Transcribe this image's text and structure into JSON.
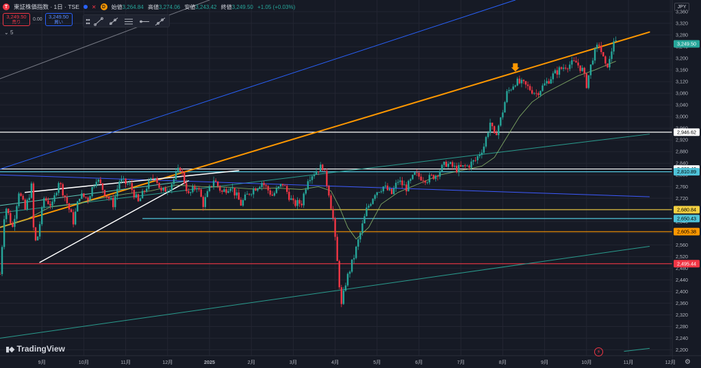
{
  "header": {
    "symbol_badge": "T",
    "title": "東証株価指数 · 1日 · TSE",
    "d_badge": "D",
    "open_label": "始値",
    "open": "3,264.84",
    "high_label": "高値",
    "high": "3,274.06",
    "low_label": "安値",
    "low": "3,243.42",
    "close_label": "終値",
    "close": "3,249.50",
    "change": "+1.05 (+0.03%)"
  },
  "trade": {
    "sell_price": "3,249.50",
    "sell_label": "売り",
    "spread": "0.00",
    "buy_price": "3,249.50",
    "buy_label": "買い"
  },
  "indicators_count": "5",
  "currency": "JPY",
  "logo_text": "TradingView",
  "colors": {
    "background": "#161a25",
    "grid": "#232632",
    "up": "#26a69a",
    "down": "#f23645",
    "orange": "#ff9800",
    "blue_line": "#2962ff",
    "teal_line": "#2a9d8f",
    "white_line": "#ffffff",
    "yellow": "#f5d142",
    "cyan": "#4fc3d9",
    "red_level": "#f23645",
    "ma": "#8fbf6e"
  },
  "chart_data": {
    "type": "candlestick",
    "y_axis": {
      "min": 2180,
      "max": 3400,
      "ticks": [
        3360,
        3320,
        3280,
        3240,
        3200,
        3160,
        3120,
        3080,
        3040,
        3000,
        2960,
        2920,
        2880,
        2840,
        2800,
        2760,
        2720,
        2680,
        2640,
        2600,
        2560,
        2520,
        2480,
        2440,
        2400,
        2360,
        2320,
        2280,
        2240,
        2200
      ]
    },
    "x_axis": {
      "labels": [
        {
          "label": "9月",
          "month": 1
        },
        {
          "label": "10月",
          "month": 2
        },
        {
          "label": "11月",
          "month": 3
        },
        {
          "label": "12月",
          "month": 4
        },
        {
          "label": "2025",
          "month": 5,
          "bold": true
        },
        {
          "label": "2月",
          "month": 6
        },
        {
          "label": "3月",
          "month": 7
        },
        {
          "label": "4月",
          "month": 8
        },
        {
          "label": "5月",
          "month": 9
        },
        {
          "label": "6月",
          "month": 10
        },
        {
          "label": "7月",
          "month": 11
        },
        {
          "label": "8月",
          "month": 12
        },
        {
          "label": "9月",
          "month": 13
        },
        {
          "label": "10月",
          "month": 14
        },
        {
          "label": "11月",
          "month": 15
        },
        {
          "label": "12月",
          "month": 16
        }
      ]
    },
    "price_path": [
      [
        0,
        2460
      ],
      [
        0.12,
        2700
      ],
      [
        0.3,
        2620
      ],
      [
        0.45,
        2745
      ],
      [
        0.6,
        2680
      ],
      [
        0.75,
        2760
      ],
      [
        0.82,
        2560
      ],
      [
        0.9,
        2590
      ],
      [
        1.05,
        2720
      ],
      [
        1.25,
        2695
      ],
      [
        1.4,
        2780
      ],
      [
        1.55,
        2725
      ],
      [
        1.75,
        2640
      ],
      [
        1.9,
        2730
      ],
      [
        2.1,
        2720
      ],
      [
        2.3,
        2790
      ],
      [
        2.5,
        2740
      ],
      [
        2.7,
        2700
      ],
      [
        2.85,
        2780
      ],
      [
        3.1,
        2765
      ],
      [
        3.3,
        2705
      ],
      [
        3.5,
        2760
      ],
      [
        3.7,
        2800
      ],
      [
        3.85,
        2740
      ],
      [
        4.05,
        2760
      ],
      [
        4.3,
        2825
      ],
      [
        4.5,
        2730
      ],
      [
        4.7,
        2765
      ],
      [
        4.85,
        2700
      ],
      [
        5.1,
        2785
      ],
      [
        5.3,
        2740
      ],
      [
        5.5,
        2765
      ],
      [
        5.75,
        2700
      ],
      [
        5.95,
        2740
      ],
      [
        6.25,
        2775
      ],
      [
        6.5,
        2730
      ],
      [
        6.75,
        2770
      ],
      [
        7.0,
        2700
      ],
      [
        7.2,
        2705
      ],
      [
        7.35,
        2790
      ],
      [
        7.55,
        2815
      ],
      [
        7.7,
        2830
      ],
      [
        7.85,
        2740
      ],
      [
        7.95,
        2650
      ],
      [
        8.05,
        2500
      ],
      [
        8.15,
        2350
      ],
      [
        8.25,
        2430
      ],
      [
        8.45,
        2520
      ],
      [
        8.6,
        2600
      ],
      [
        8.75,
        2680
      ],
      [
        8.95,
        2740
      ],
      [
        9.15,
        2760
      ],
      [
        9.35,
        2735
      ],
      [
        9.5,
        2780
      ],
      [
        9.7,
        2755
      ],
      [
        9.9,
        2800
      ],
      [
        10.2,
        2785
      ],
      [
        10.4,
        2800
      ],
      [
        10.65,
        2840
      ],
      [
        10.9,
        2820
      ],
      [
        11.15,
        2830
      ],
      [
        11.35,
        2850
      ],
      [
        11.55,
        2900
      ],
      [
        11.7,
        2980
      ],
      [
        11.8,
        2930
      ],
      [
        11.95,
        2990
      ],
      [
        12.1,
        3080
      ],
      [
        12.3,
        3120
      ],
      [
        12.5,
        3110
      ],
      [
        12.65,
        3095
      ],
      [
        12.8,
        3080
      ],
      [
        13.0,
        3110
      ],
      [
        13.15,
        3135
      ],
      [
        13.3,
        3155
      ],
      [
        13.5,
        3175
      ],
      [
        13.75,
        3185
      ],
      [
        13.9,
        3160
      ],
      [
        14.0,
        3110
      ],
      [
        14.15,
        3205
      ],
      [
        14.3,
        3250
      ],
      [
        14.45,
        3170
      ],
      [
        14.55,
        3190
      ],
      [
        14.65,
        3265
      ],
      [
        14.7,
        3249.5
      ]
    ],
    "moving_average": [
      [
        0,
        2620
      ],
      [
        0.6,
        2645
      ],
      [
        1.2,
        2690
      ],
      [
        1.8,
        2700
      ],
      [
        2.4,
        2720
      ],
      [
        3.0,
        2735
      ],
      [
        3.6,
        2745
      ],
      [
        4.2,
        2765
      ],
      [
        4.8,
        2760
      ],
      [
        5.4,
        2758
      ],
      [
        6.0,
        2752
      ],
      [
        6.6,
        2755
      ],
      [
        7.2,
        2750
      ],
      [
        7.6,
        2760
      ],
      [
        7.9,
        2745
      ],
      [
        8.1,
        2690
      ],
      [
        8.3,
        2620
      ],
      [
        8.5,
        2580
      ],
      [
        8.8,
        2620
      ],
      [
        9.1,
        2700
      ],
      [
        9.5,
        2740
      ],
      [
        10.0,
        2770
      ],
      [
        10.5,
        2800
      ],
      [
        11.0,
        2815
      ],
      [
        11.5,
        2830
      ],
      [
        11.8,
        2860
      ],
      [
        12.1,
        2930
      ],
      [
        12.4,
        3000
      ],
      [
        12.7,
        3050
      ],
      [
        13.0,
        3080
      ],
      [
        13.4,
        3110
      ],
      [
        13.8,
        3140
      ],
      [
        14.2,
        3160
      ],
      [
        14.7,
        3190
      ]
    ],
    "horizontal_levels": [
      {
        "price": 2946.62,
        "label": "2,946.62",
        "color": "#ffffff",
        "text_color": "#000000",
        "from_month": 0
      },
      {
        "price": 2820.4,
        "label": "2,820.40",
        "color": "#ffffff",
        "text_color": "#000000",
        "from_month": 0
      },
      {
        "price": 2810.89,
        "label": "2,810.89",
        "color": "#4fc3d9",
        "text_color": "#000000",
        "from_month": 0
      },
      {
        "price": 2680.84,
        "label": "2,680.84",
        "color": "#f5d142",
        "text_color": "#000000",
        "from_month": 4.1
      },
      {
        "price": 2650.43,
        "label": "2,650.43",
        "color": "#4fc3d9",
        "text_color": "#000000",
        "from_month": 3.4
      },
      {
        "price": 2605.38,
        "label": "2,605.38",
        "color": "#ff9800",
        "text_color": "#000000",
        "from_month": 0
      },
      {
        "price": 2495.44,
        "label": "2,495.44",
        "color": "#f23645",
        "text_color": "#ffffff",
        "from_month": 0
      }
    ],
    "last_price": {
      "price": 3249.5,
      "label": "3,249.50",
      "color": "#26a69a"
    },
    "trendlines": [
      {
        "name": "orange-channel",
        "color": "#ff9800",
        "width": 2,
        "p1": [
          0,
          2620
        ],
        "p2": [
          15.5,
          3290
        ]
      },
      {
        "name": "blue-upper",
        "color": "#2962ff",
        "width": 1,
        "p1": [
          0,
          2820
        ],
        "p2": [
          12.3,
          3400
        ]
      },
      {
        "name": "gray-upper",
        "color": "#787b86",
        "width": 1,
        "p1": [
          0,
          3130
        ],
        "p2": [
          5.0,
          3400
        ]
      },
      {
        "name": "teal-mid",
        "color": "#2a9d8f",
        "width": 1,
        "p1": [
          0,
          2670
        ],
        "p2": [
          15.5,
          2940
        ]
      },
      {
        "name": "teal-low",
        "color": "#2a9d8f",
        "width": 1,
        "p1": [
          0,
          2240
        ],
        "p2": [
          15.5,
          2555
        ]
      },
      {
        "name": "blue-down",
        "color": "#3d5afe",
        "width": 1,
        "p1": [
          0,
          2800
        ],
        "p2": [
          15.5,
          2725
        ]
      },
      {
        "name": "white-top",
        "color": "#ffffff",
        "width": 1.5,
        "p1": [
          0.6,
          2740
        ],
        "p2": [
          5.7,
          2815
        ]
      },
      {
        "name": "white-bottom",
        "color": "#ffffff",
        "width": 1.5,
        "p1": [
          0.95,
          2500
        ],
        "p2": [
          4.5,
          2780
        ]
      },
      {
        "name": "teal-short",
        "color": "#5fc9b9",
        "width": 1,
        "p1": [
          0,
          2695
        ],
        "p2": [
          4.5,
          2780
        ]
      },
      {
        "name": "green-future",
        "color": "#2a9d8f",
        "width": 1,
        "p1": [
          14.9,
          2195
        ],
        "p2": [
          15.5,
          2205
        ]
      }
    ],
    "marker": {
      "month": 12.3,
      "price": 3150,
      "color": "#ff9800"
    }
  }
}
